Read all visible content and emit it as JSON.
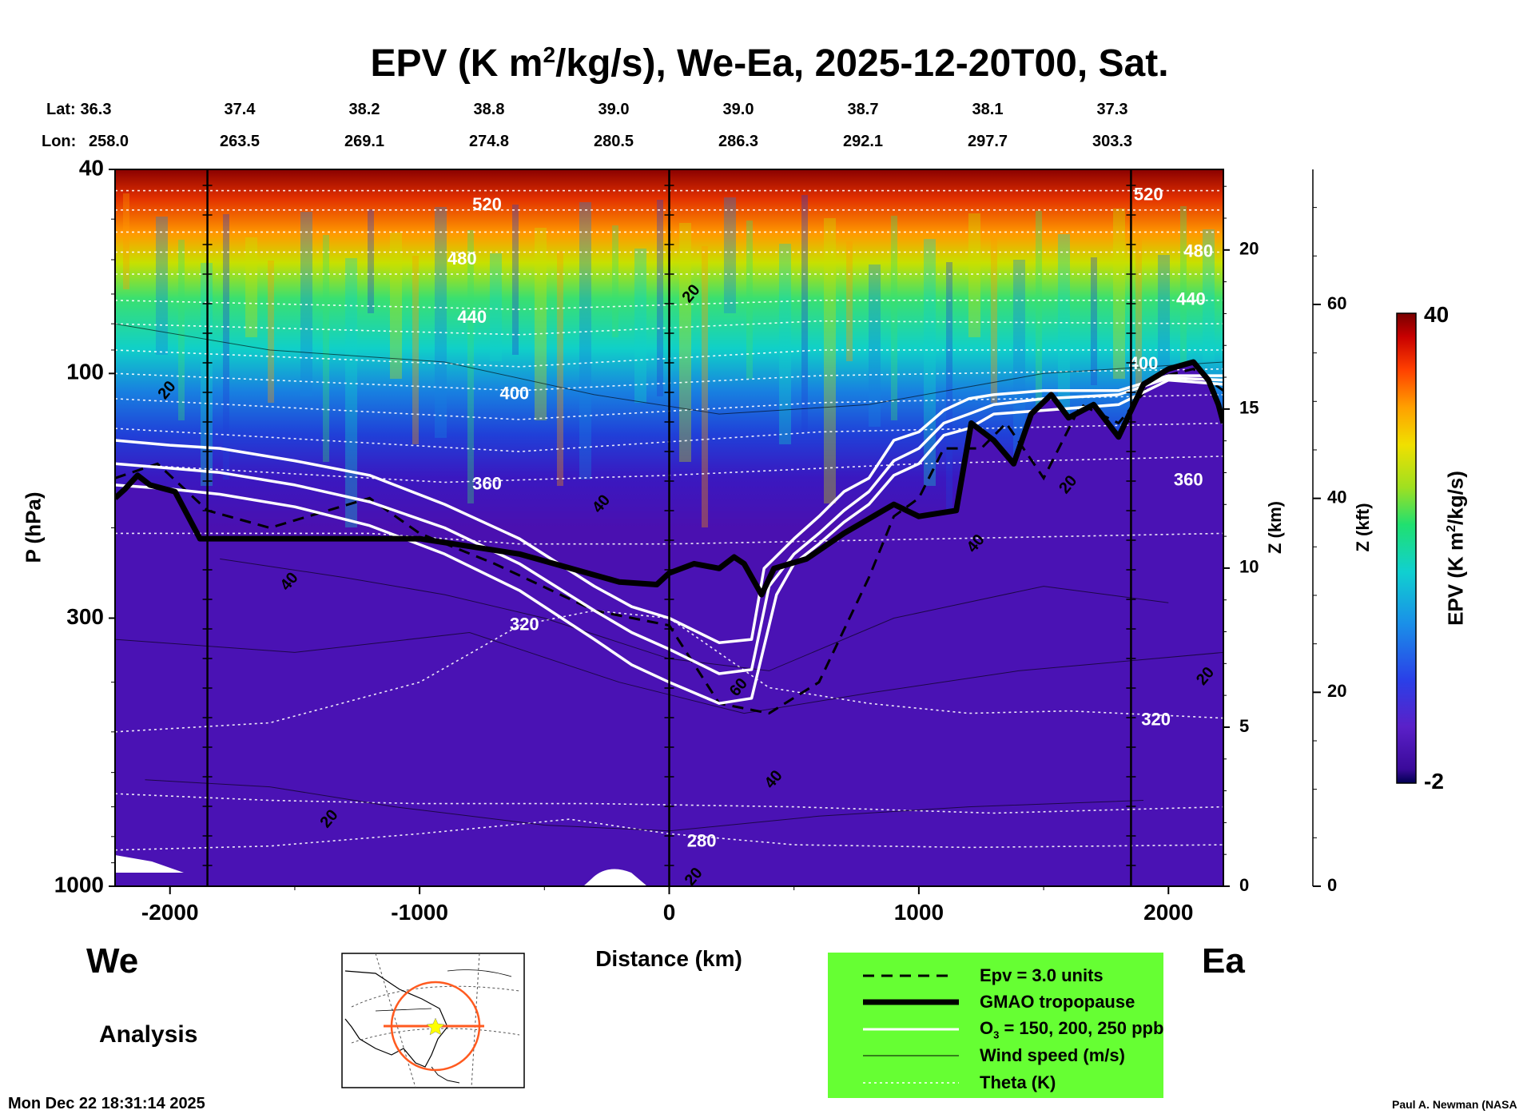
{
  "title": {
    "prefix": "EPV (K m",
    "sup": "2",
    "suffix": "/kg/s), We-Ea, 2025-12-20T00, Sat."
  },
  "coords": {
    "lat_label": "Lat:",
    "lon_label": "Lon:",
    "lat": [
      "36.3",
      "37.4",
      "38.2",
      "38.8",
      "39.0",
      "39.0",
      "38.7",
      "38.1",
      "37.3"
    ],
    "lon": [
      "258.0",
      "263.5",
      "269.1",
      "274.8",
      "280.5",
      "286.3",
      "292.1",
      "297.7",
      "303.3"
    ]
  },
  "chart_data": {
    "type": "heatmap",
    "title": "EPV (K m2/kg/s), We-Ea, 2025-12-20T00, Sat.",
    "xlabel": "Distance (km)",
    "ylabel": "P (hPa)",
    "xlim": [
      -2220,
      2220
    ],
    "ylim": [
      1000,
      40
    ],
    "y_scale": "log",
    "x_ticks": [
      -2000,
      -1000,
      0,
      1000,
      2000
    ],
    "x_tick_labels": [
      "-2000",
      "-1000",
      "0",
      "1000",
      "2000"
    ],
    "y_ticks": [
      40,
      100,
      300,
      1000
    ],
    "y_tick_labels": [
      "40",
      "100",
      "300",
      "1000"
    ],
    "z_km_ticks": [
      0,
      5,
      10,
      15,
      20
    ],
    "z_km_label": "Z (km)",
    "z_kft_ticks": [
      0,
      20,
      40,
      60
    ],
    "z_kft_label": "Z (kft)",
    "colorbar": {
      "label": "EPV (K m2/kg/s)",
      "min": -2,
      "max": 40,
      "min_label": "-2",
      "max_label": "40"
    },
    "theta_labels": [
      {
        "text": "520",
        "x": -730,
        "p": 47
      },
      {
        "text": "480",
        "x": -830,
        "p": 60
      },
      {
        "text": "440",
        "x": -790,
        "p": 78
      },
      {
        "text": "400",
        "x": -620,
        "p": 110
      },
      {
        "text": "360",
        "x": -730,
        "p": 165
      },
      {
        "text": "320",
        "x": -580,
        "p": 310
      },
      {
        "text": "280",
        "x": 130,
        "p": 820
      },
      {
        "text": "520",
        "x": 1920,
        "p": 45
      },
      {
        "text": "480",
        "x": 2120,
        "p": 58
      },
      {
        "text": "440",
        "x": 2090,
        "p": 72
      },
      {
        "text": "400",
        "x": 1900,
        "p": 96
      },
      {
        "text": "360",
        "x": 2080,
        "p": 162
      },
      {
        "text": "320",
        "x": 1950,
        "p": 475
      }
    ],
    "wind_labels": [
      {
        "text": "20",
        "x": -2010,
        "p": 108
      },
      {
        "text": "20",
        "x": 90,
        "p": 70
      },
      {
        "text": "40",
        "x": -270,
        "p": 180
      },
      {
        "text": "40",
        "x": -1520,
        "p": 255
      },
      {
        "text": "40",
        "x": 1230,
        "p": 215
      },
      {
        "text": "20",
        "x": 1600,
        "p": 165
      },
      {
        "text": "40",
        "x": 420,
        "p": 620
      },
      {
        "text": "60",
        "x": 280,
        "p": 410
      },
      {
        "text": "20",
        "x": -1360,
        "p": 740
      },
      {
        "text": "20",
        "x": 100,
        "p": 960
      },
      {
        "text": "20",
        "x": 2150,
        "p": 390
      }
    ],
    "tropopause": [
      [
        -2220,
        175
      ],
      [
        -2180,
        168
      ],
      [
        -2130,
        158
      ],
      [
        -2080,
        165
      ],
      [
        -1980,
        170
      ],
      [
        -1880,
        210
      ],
      [
        -1800,
        210
      ],
      [
        -1000,
        210
      ],
      [
        -600,
        225
      ],
      [
        -200,
        255
      ],
      [
        -50,
        258
      ],
      [
        0,
        245
      ],
      [
        100,
        235
      ],
      [
        200,
        240
      ],
      [
        260,
        228
      ],
      [
        300,
        235
      ],
      [
        370,
        270
      ],
      [
        420,
        240
      ],
      [
        550,
        230
      ],
      [
        700,
        205
      ],
      [
        900,
        180
      ],
      [
        1000,
        190
      ],
      [
        1150,
        185
      ],
      [
        1210,
        125
      ],
      [
        1300,
        135
      ],
      [
        1380,
        150
      ],
      [
        1450,
        120
      ],
      [
        1530,
        110
      ],
      [
        1600,
        122
      ],
      [
        1700,
        115
      ],
      [
        1800,
        133
      ],
      [
        1900,
        105
      ],
      [
        2000,
        98
      ],
      [
        2100,
        95
      ],
      [
        2160,
        103
      ],
      [
        2200,
        115
      ],
      [
        2220,
        125
      ]
    ],
    "ozone": [
      [
        [
          -2220,
          135
        ],
        [
          -2000,
          138
        ],
        [
          -1800,
          140
        ],
        [
          -1500,
          148
        ],
        [
          -1200,
          158
        ],
        [
          -900,
          180
        ],
        [
          -600,
          210
        ],
        [
          -300,
          260
        ],
        [
          -150,
          285
        ],
        [
          0,
          300
        ],
        [
          200,
          335
        ],
        [
          330,
          330
        ],
        [
          380,
          240
        ],
        [
          500,
          210
        ],
        [
          600,
          190
        ],
        [
          700,
          170
        ],
        [
          800,
          160
        ],
        [
          900,
          135
        ],
        [
          1000,
          130
        ],
        [
          1100,
          118
        ],
        [
          1200,
          112
        ],
        [
          1300,
          110
        ],
        [
          1500,
          108
        ],
        [
          1800,
          108
        ],
        [
          2000,
          101
        ],
        [
          2220,
          101
        ]
      ],
      [
        [
          -2220,
          150
        ],
        [
          -2000,
          153
        ],
        [
          -1800,
          156
        ],
        [
          -1500,
          165
        ],
        [
          -1200,
          178
        ],
        [
          -900,
          200
        ],
        [
          -600,
          235
        ],
        [
          -300,
          290
        ],
        [
          -150,
          320
        ],
        [
          0,
          345
        ],
        [
          200,
          385
        ],
        [
          330,
          378
        ],
        [
          400,
          260
        ],
        [
          500,
          225
        ],
        [
          600,
          205
        ],
        [
          700,
          185
        ],
        [
          800,
          170
        ],
        [
          900,
          148
        ],
        [
          1000,
          140
        ],
        [
          1100,
          125
        ],
        [
          1200,
          120
        ],
        [
          1300,
          115
        ],
        [
          1500,
          112
        ],
        [
          1800,
          110
        ],
        [
          2000,
          102
        ],
        [
          2220,
          103
        ]
      ],
      [
        [
          -2220,
          165
        ],
        [
          -2000,
          168
        ],
        [
          -1800,
          172
        ],
        [
          -1500,
          182
        ],
        [
          -1200,
          198
        ],
        [
          -900,
          225
        ],
        [
          -600,
          265
        ],
        [
          -300,
          330
        ],
        [
          -150,
          370
        ],
        [
          0,
          400
        ],
        [
          200,
          440
        ],
        [
          330,
          430
        ],
        [
          430,
          270
        ],
        [
          500,
          235
        ],
        [
          600,
          215
        ],
        [
          700,
          195
        ],
        [
          800,
          180
        ],
        [
          900,
          158
        ],
        [
          1000,
          150
        ],
        [
          1100,
          132
        ],
        [
          1200,
          128
        ],
        [
          1300,
          120
        ],
        [
          1500,
          118
        ],
        [
          1800,
          115
        ],
        [
          2000,
          103
        ],
        [
          2220,
          105
        ]
      ]
    ],
    "epv3_contour": [
      [
        -2220,
        160
      ],
      [
        -2050,
        150
      ],
      [
        -1850,
        185
      ],
      [
        -1600,
        200
      ],
      [
        -1200,
        175
      ],
      [
        -1000,
        205
      ],
      [
        -700,
        235
      ],
      [
        -300,
        290
      ],
      [
        0,
        310
      ],
      [
        200,
        440
      ],
      [
        400,
        460
      ],
      [
        600,
        400
      ],
      [
        800,
        250
      ],
      [
        900,
        190
      ],
      [
        1000,
        175
      ],
      [
        1100,
        140
      ],
      [
        1250,
        140
      ],
      [
        1350,
        125
      ],
      [
        1500,
        160
      ],
      [
        1650,
        115
      ],
      [
        1800,
        125
      ],
      [
        1950,
        102
      ],
      [
        2100,
        98
      ],
      [
        2220,
        108
      ]
    ],
    "theta_contours": [
      [
        [
          -2220,
          44
        ],
        [
          2220,
          44
        ]
      ],
      [
        [
          -2220,
          48
        ],
        [
          2220,
          48
        ]
      ],
      [
        [
          -2220,
          53
        ],
        [
          2220,
          53
        ]
      ],
      [
        [
          -2220,
          58
        ],
        [
          2220,
          58
        ]
      ],
      [
        [
          -2220,
          64
        ],
        [
          2220,
          64
        ]
      ],
      [
        [
          -2220,
          72
        ],
        [
          -600,
          75
        ],
        [
          600,
          72
        ],
        [
          2220,
          72
        ]
      ],
      [
        [
          -2220,
          80
        ],
        [
          -600,
          84
        ],
        [
          600,
          79
        ],
        [
          2220,
          80
        ]
      ],
      [
        [
          -2220,
          90
        ],
        [
          -600,
          97
        ],
        [
          600,
          90
        ],
        [
          2220,
          90
        ]
      ],
      [
        [
          -2220,
          100
        ],
        [
          -600,
          108
        ],
        [
          600,
          101
        ],
        [
          2220,
          98
        ]
      ],
      [
        [
          -2220,
          112
        ],
        [
          -600,
          123
        ],
        [
          600,
          114
        ],
        [
          2220,
          110
        ]
      ],
      [
        [
          -2220,
          128
        ],
        [
          -600,
          142
        ],
        [
          600,
          130
        ],
        [
          2220,
          125
        ]
      ],
      [
        [
          -2220,
          150
        ],
        [
          -900,
          163
        ],
        [
          0,
          158
        ],
        [
          1000,
          150
        ],
        [
          2220,
          145
        ]
      ],
      [
        [
          -2220,
          205
        ],
        [
          -1200,
          205
        ],
        [
          -600,
          215
        ],
        [
          0,
          215
        ],
        [
          2220,
          205
        ]
      ],
      [
        [
          -2220,
          500
        ],
        [
          -1600,
          480
        ],
        [
          -1000,
          400
        ],
        [
          -600,
          310
        ],
        [
          -300,
          290
        ],
        [
          0,
          300
        ],
        [
          400,
          410
        ],
        [
          800,
          440
        ],
        [
          1200,
          460
        ],
        [
          1600,
          455
        ],
        [
          2220,
          470
        ]
      ],
      [
        [
          -2220,
          660
        ],
        [
          -1600,
          680
        ],
        [
          -1000,
          690
        ],
        [
          -300,
          690
        ],
        [
          500,
          700
        ],
        [
          1300,
          720
        ],
        [
          2220,
          700
        ]
      ],
      [
        [
          -2220,
          850
        ],
        [
          -1600,
          835
        ],
        [
          -1000,
          790
        ],
        [
          -400,
          740
        ],
        [
          0,
          790
        ],
        [
          500,
          830
        ],
        [
          1200,
          840
        ],
        [
          2220,
          830
        ]
      ]
    ],
    "wind_contours": [
      [
        [
          -2220,
          330
        ],
        [
          -1500,
          350
        ],
        [
          -800,
          320
        ],
        [
          -200,
          400
        ],
        [
          300,
          460
        ],
        [
          800,
          420
        ],
        [
          1400,
          380
        ],
        [
          2220,
          350
        ]
      ],
      [
        [
          -1800,
          230
        ],
        [
          -1300,
          250
        ],
        [
          -900,
          270
        ],
        [
          -500,
          300
        ],
        [
          0,
          360
        ],
        [
          400,
          380
        ],
        [
          900,
          300
        ],
        [
          1500,
          260
        ],
        [
          2000,
          280
        ]
      ],
      [
        [
          -2220,
          80
        ],
        [
          -1600,
          90
        ],
        [
          -900,
          95
        ],
        [
          -300,
          110
        ],
        [
          200,
          120
        ],
        [
          800,
          115
        ],
        [
          1500,
          100
        ],
        [
          2220,
          95
        ]
      ],
      [
        [
          -2100,
          620
        ],
        [
          -1600,
          640
        ],
        [
          -1100,
          700
        ],
        [
          -500,
          760
        ],
        [
          0,
          780
        ],
        [
          600,
          730
        ],
        [
          1200,
          700
        ],
        [
          1900,
          680
        ]
      ]
    ]
  },
  "legend": {
    "items": [
      {
        "label": "Epv = 3.0 units"
      },
      {
        "label": "GMAO tropopause"
      },
      {
        "label": "O",
        "sub": "3",
        "rest": " = 150, 200, 250 ppb"
      },
      {
        "label": "Wind speed (m/s)"
      },
      {
        "label": "Theta (K)"
      }
    ],
    "bg_color": "#66ff33"
  },
  "direction": {
    "west": "We",
    "east": "Ea"
  },
  "analysis_label": "Analysis",
  "timestamp": "Mon Dec 22 18:31:14 2025",
  "credit": "Paul A. Newman (NASA"
}
